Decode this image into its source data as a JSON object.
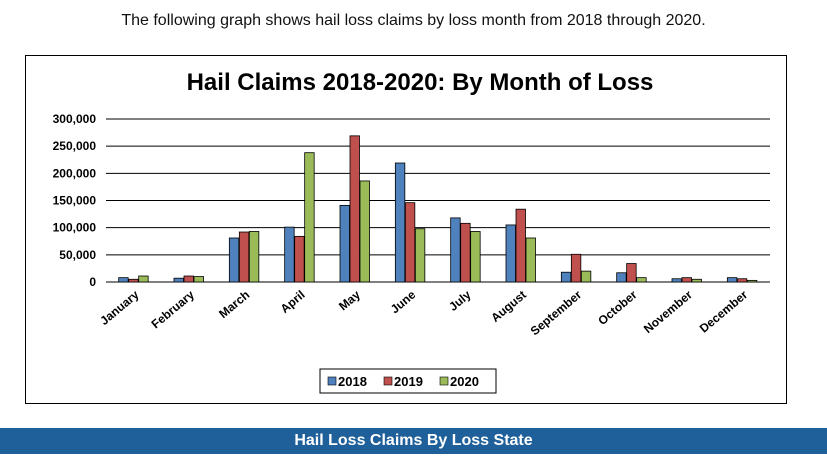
{
  "intro_text": "The following graph shows hail loss claims by loss month from 2018 through 2020.",
  "footer_title": "Hail Loss Claims By Loss State",
  "chart_data": {
    "type": "bar",
    "title": "Hail Claims 2018-2020: By Month of Loss",
    "xlabel": "",
    "ylabel": "",
    "ylim": [
      0,
      300000
    ],
    "yticks": [
      0,
      50000,
      100000,
      150000,
      200000,
      250000,
      300000
    ],
    "ytick_labels": [
      "0",
      "50,000",
      "100,000",
      "150,000",
      "200,000",
      "250,000",
      "300,000"
    ],
    "grid": true,
    "legend_position": "bottom-center",
    "categories": [
      "January",
      "February",
      "March",
      "April",
      "May",
      "June",
      "July",
      "August",
      "September",
      "October",
      "November",
      "December"
    ],
    "series": [
      {
        "name": "2018",
        "color": "#4f81bd",
        "values": [
          8000,
          7000,
          81000,
          101000,
          141000,
          219000,
          118000,
          105000,
          18000,
          17000,
          6000,
          8000
        ]
      },
      {
        "name": "2019",
        "color": "#c0504d",
        "values": [
          5000,
          11000,
          92000,
          84000,
          269000,
          146000,
          108000,
          134000,
          51000,
          34000,
          8000,
          6000
        ]
      },
      {
        "name": "2020",
        "color": "#9bbb59",
        "values": [
          11000,
          10000,
          93000,
          238000,
          186000,
          98000,
          93000,
          81000,
          20000,
          8000,
          5000,
          3000
        ]
      }
    ]
  }
}
